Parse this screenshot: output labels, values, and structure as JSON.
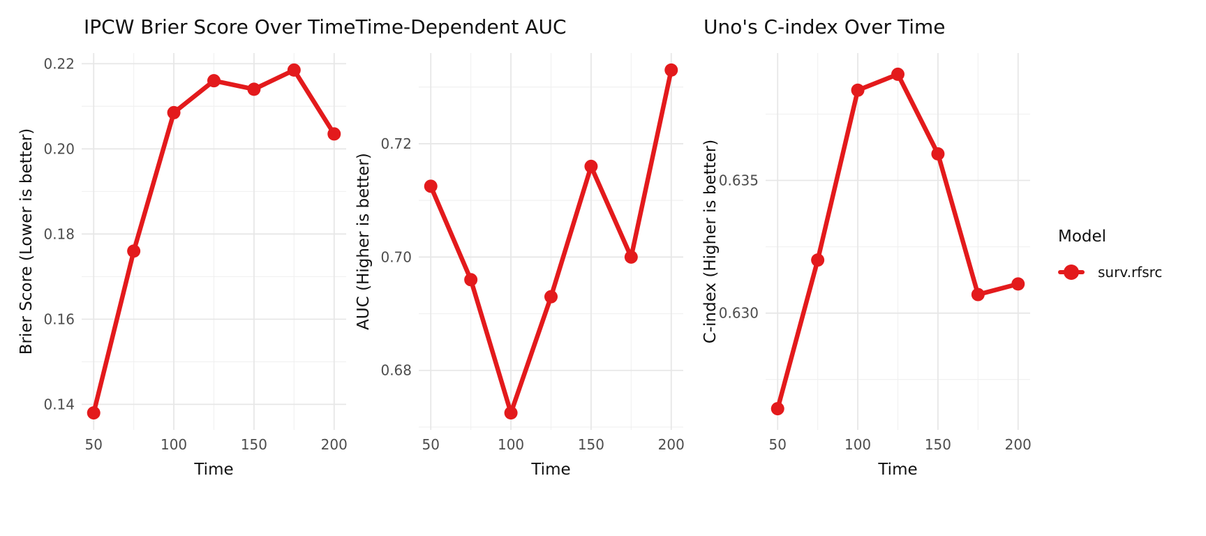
{
  "figure": {
    "background": "#FFFFFF",
    "accent_red": "#E31A1C",
    "grid_major_color": "#E7E7E7",
    "grid_minor_color": "#F1F1F1",
    "tick_label_color": "#4D4D4D",
    "text_color": "#111111"
  },
  "legend": {
    "title": "Model",
    "items": [
      {
        "label": "surv.rfsrc",
        "color": "#E31A1C",
        "marker": "point-on-line"
      }
    ]
  },
  "chart_data": [
    {
      "type": "line",
      "title": "IPCW Brier Score Over Time",
      "xlabel": "Time",
      "ylabel": "Brier Score (Lower is better)",
      "series": [
        {
          "name": "surv.rfsrc",
          "color": "#E31A1C",
          "x": [
            50,
            75,
            100,
            125,
            150,
            175,
            200
          ],
          "y": [
            0.138,
            0.176,
            0.2085,
            0.216,
            0.214,
            0.2185,
            0.2035
          ]
        }
      ],
      "x_ticks": [
        50,
        100,
        150,
        200
      ],
      "x_tick_labels": [
        "50",
        "100",
        "150",
        "200"
      ],
      "y_ticks": [
        0.14,
        0.16,
        0.18,
        0.2,
        0.22
      ],
      "y_tick_labels": [
        "0.14",
        "0.16",
        "0.18",
        "0.20",
        "0.22"
      ],
      "xlim": [
        42.5,
        207.5
      ],
      "ylim": [
        0.134,
        0.2225
      ],
      "grid": true,
      "legend_position": "right"
    },
    {
      "type": "line",
      "title": "Time-Dependent AUC",
      "xlabel": "Time",
      "ylabel": "AUC (Higher is better)",
      "series": [
        {
          "name": "surv.rfsrc",
          "color": "#E31A1C",
          "x": [
            50,
            75,
            100,
            125,
            150,
            175,
            200
          ],
          "y": [
            0.7125,
            0.696,
            0.6725,
            0.693,
            0.716,
            0.7,
            0.733
          ]
        }
      ],
      "x_ticks": [
        50,
        100,
        150,
        200
      ],
      "x_tick_labels": [
        "50",
        "100",
        "150",
        "200"
      ],
      "y_ticks": [
        0.68,
        0.7,
        0.72
      ],
      "y_tick_labels": [
        "0.68",
        "0.70",
        "0.72"
      ],
      "xlim": [
        42.5,
        207.5
      ],
      "ylim": [
        0.6695,
        0.736
      ],
      "grid": true,
      "legend_position": "right"
    },
    {
      "type": "line",
      "title": "Uno's C-index Over Time",
      "xlabel": "Time",
      "ylabel": "C-index (Higher is better)",
      "series": [
        {
          "name": "surv.rfsrc",
          "color": "#E31A1C",
          "x": [
            50,
            75,
            100,
            125,
            150,
            175,
            200
          ],
          "y": [
            0.6264,
            0.632,
            0.6384,
            0.639,
            0.636,
            0.6307,
            0.6311
          ]
        }
      ],
      "x_ticks": [
        50,
        100,
        150,
        200
      ],
      "x_tick_labels": [
        "50",
        "100",
        "150",
        "200"
      ],
      "y_ticks": [
        0.63,
        0.635
      ],
      "y_tick_labels": [
        "0.630",
        "0.635"
      ],
      "xlim": [
        42.5,
        207.5
      ],
      "ylim": [
        0.6256,
        0.6398
      ],
      "grid": true,
      "legend_position": "right"
    }
  ]
}
